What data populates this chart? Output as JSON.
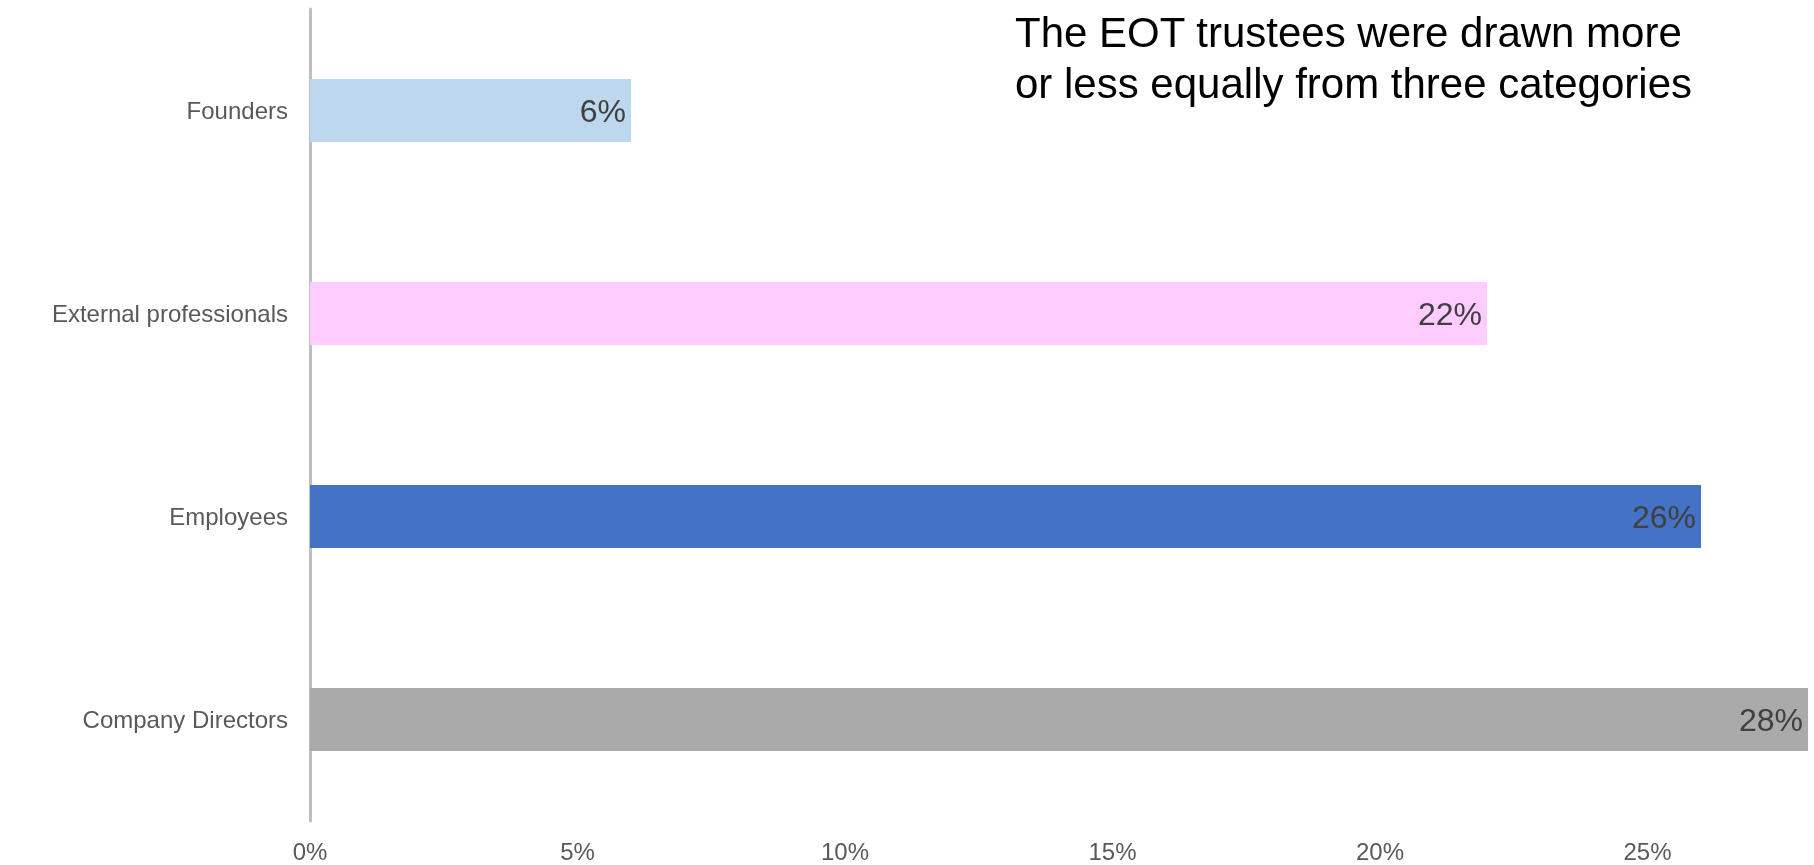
{
  "chart_data": {
    "type": "bar",
    "orientation": "horizontal",
    "title": "The EOT trustees were drawn more or less equally from three categories",
    "categories": [
      "Founders",
      "External professionals",
      "Employees",
      "Company Directors"
    ],
    "values": [
      6,
      22,
      26,
      28
    ],
    "colors": [
      "#bdd7ee",
      "#ffccff",
      "#4472c4",
      "#aaaaaa"
    ],
    "value_labels": [
      "6%",
      "22%",
      "26%",
      "28%"
    ],
    "xlim": [
      0,
      28
    ],
    "xticks": [
      {
        "value": 0,
        "label": "0%"
      },
      {
        "value": 5,
        "label": "5%"
      },
      {
        "value": 10,
        "label": "10%"
      },
      {
        "value": 15,
        "label": "15%"
      },
      {
        "value": 20,
        "label": "20%"
      },
      {
        "value": 25,
        "label": "25%"
      }
    ],
    "grid": false
  }
}
